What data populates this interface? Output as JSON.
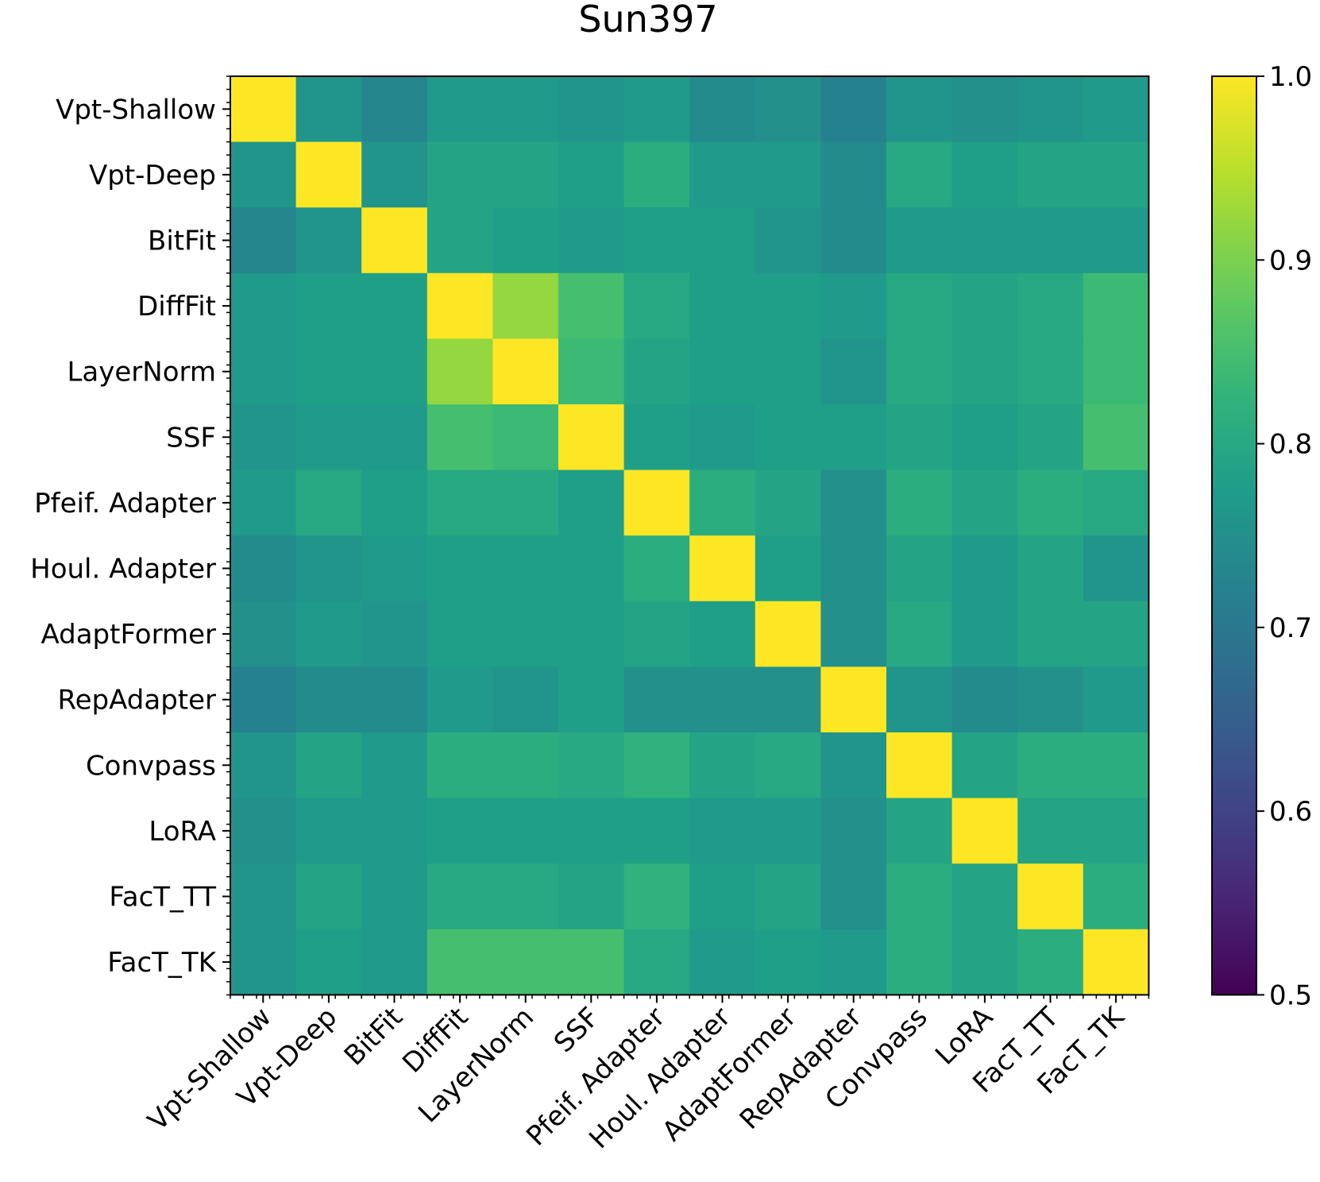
{
  "chart_data": {
    "type": "heatmap",
    "title": "Sun397",
    "xlabel": "",
    "ylabel": "",
    "categories": [
      "Vpt-Shallow",
      "Vpt-Deep",
      "BitFit",
      "DiffFit",
      "LayerNorm",
      "SSF",
      "Pfeif. Adapter",
      "Houl. Adapter",
      "AdaptFormer",
      "RepAdapter",
      "Convpass",
      "LoRA",
      "FacT_TT",
      "FacT_TK"
    ],
    "values": [
      [
        1.0,
        0.76,
        0.73,
        0.77,
        0.77,
        0.76,
        0.77,
        0.74,
        0.75,
        0.72,
        0.76,
        0.75,
        0.76,
        0.77
      ],
      [
        0.76,
        1.0,
        0.76,
        0.79,
        0.79,
        0.78,
        0.81,
        0.77,
        0.77,
        0.74,
        0.8,
        0.78,
        0.79,
        0.79
      ],
      [
        0.73,
        0.76,
        1.0,
        0.79,
        0.78,
        0.77,
        0.78,
        0.78,
        0.76,
        0.74,
        0.77,
        0.77,
        0.77,
        0.77
      ],
      [
        0.77,
        0.78,
        0.78,
        1.0,
        0.92,
        0.85,
        0.8,
        0.78,
        0.78,
        0.77,
        0.8,
        0.79,
        0.8,
        0.84
      ],
      [
        0.77,
        0.78,
        0.78,
        0.92,
        1.0,
        0.84,
        0.79,
        0.78,
        0.78,
        0.76,
        0.8,
        0.79,
        0.8,
        0.84
      ],
      [
        0.76,
        0.77,
        0.77,
        0.85,
        0.84,
        1.0,
        0.78,
        0.77,
        0.78,
        0.78,
        0.79,
        0.78,
        0.79,
        0.85
      ],
      [
        0.77,
        0.8,
        0.78,
        0.8,
        0.8,
        0.78,
        1.0,
        0.81,
        0.79,
        0.75,
        0.81,
        0.79,
        0.81,
        0.8
      ],
      [
        0.74,
        0.76,
        0.77,
        0.78,
        0.78,
        0.78,
        0.81,
        1.0,
        0.78,
        0.75,
        0.79,
        0.77,
        0.79,
        0.76
      ],
      [
        0.75,
        0.77,
        0.76,
        0.78,
        0.78,
        0.78,
        0.79,
        0.78,
        1.0,
        0.75,
        0.8,
        0.77,
        0.79,
        0.79
      ],
      [
        0.72,
        0.74,
        0.74,
        0.77,
        0.76,
        0.78,
        0.75,
        0.75,
        0.75,
        1.0,
        0.76,
        0.74,
        0.75,
        0.77
      ],
      [
        0.76,
        0.79,
        0.77,
        0.81,
        0.81,
        0.8,
        0.82,
        0.79,
        0.8,
        0.76,
        1.0,
        0.79,
        0.81,
        0.81
      ],
      [
        0.75,
        0.77,
        0.77,
        0.78,
        0.78,
        0.78,
        0.78,
        0.77,
        0.77,
        0.75,
        0.79,
        1.0,
        0.79,
        0.79
      ],
      [
        0.76,
        0.79,
        0.77,
        0.8,
        0.8,
        0.79,
        0.82,
        0.78,
        0.79,
        0.75,
        0.81,
        0.79,
        1.0,
        0.81
      ],
      [
        0.76,
        0.78,
        0.77,
        0.85,
        0.85,
        0.85,
        0.8,
        0.77,
        0.78,
        0.77,
        0.81,
        0.79,
        0.81,
        1.0
      ]
    ],
    "colormap": "viridis",
    "colorbar": {
      "vmin": 0.5,
      "vmax": 1.0,
      "ticks": [
        0.5,
        0.6,
        0.7,
        0.8,
        0.9,
        1.0
      ],
      "tick_labels": [
        "0.5",
        "0.6",
        "0.7",
        "0.8",
        "0.9",
        "1.0"
      ]
    },
    "grid": false
  }
}
